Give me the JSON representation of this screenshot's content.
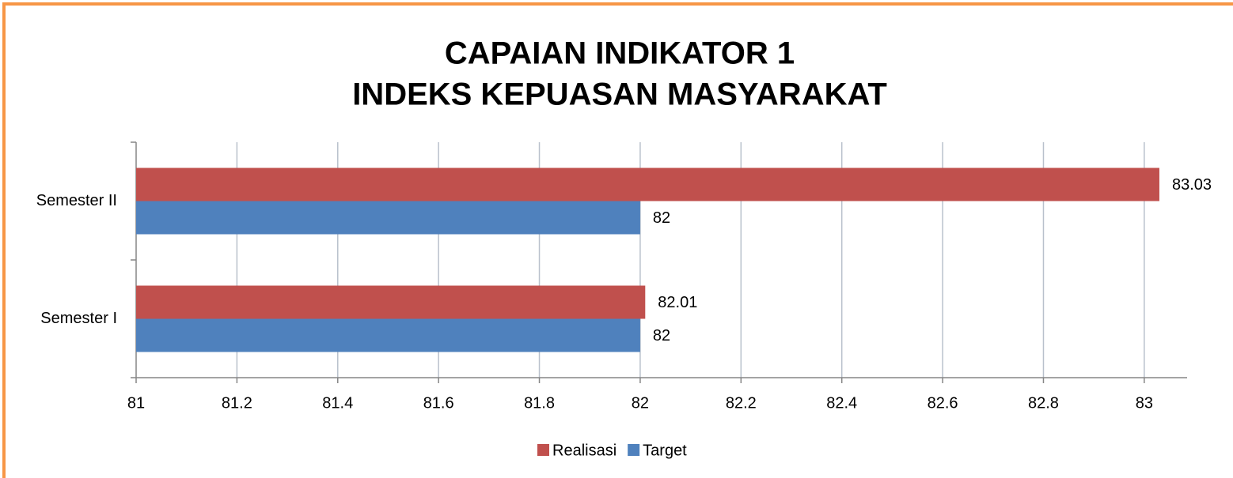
{
  "chart_data": {
    "type": "bar",
    "orientation": "horizontal",
    "title": [
      "CAPAIAN INDIKATOR 1",
      "INDEKS KEPUASAN MASYARAKAT"
    ],
    "categories": [
      "Semester I",
      "Semester II"
    ],
    "series": [
      {
        "name": "Realisasi",
        "color": "#c0504d",
        "values": [
          82.01,
          83.03
        ]
      },
      {
        "name": "Target",
        "color": "#4f81bd",
        "values": [
          82,
          82
        ]
      }
    ],
    "xlim": [
      81,
      83.085
    ],
    "xticks": [
      81,
      81.2,
      81.4,
      81.6,
      81.8,
      82,
      82.2,
      82.4,
      82.6,
      82.8,
      83
    ],
    "grid": true,
    "legend": "bottom"
  }
}
